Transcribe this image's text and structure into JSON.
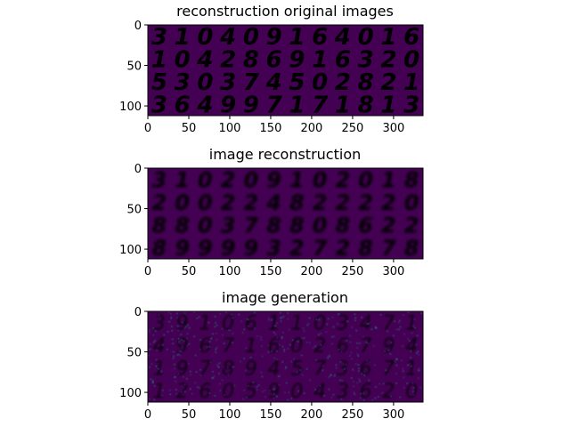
{
  "figure": {
    "panels": [
      {
        "title": "reconstruction original images",
        "rows": [
          [
            "3",
            "1",
            "0",
            "4",
            "0",
            "9",
            "1",
            "6",
            "4",
            "0",
            "1",
            "6"
          ],
          [
            "1",
            "0",
            "4",
            "2",
            "8",
            "6",
            "9",
            "1",
            "6",
            "3",
            "2",
            "0"
          ],
          [
            "5",
            "3",
            "0",
            "3",
            "7",
            "4",
            "5",
            "0",
            "2",
            "8",
            "2",
            "1"
          ],
          [
            "3",
            "6",
            "4",
            "9",
            "9",
            "7",
            "1",
            "7",
            "1",
            "8",
            "1",
            "3"
          ]
        ]
      },
      {
        "title": "image reconstruction",
        "rows": [
          [
            "3",
            "1",
            "0",
            "2",
            "0",
            "9",
            "1",
            "0",
            "2",
            "0",
            "1",
            "8"
          ],
          [
            "2",
            "0",
            "0",
            "2",
            "2",
            "4",
            "8",
            "2",
            "2",
            "2",
            "2",
            "0"
          ],
          [
            "8",
            "8",
            "0",
            "3",
            "7",
            "8",
            "8",
            "0",
            "8",
            "6",
            "2",
            "2"
          ],
          [
            "8",
            "9",
            "9",
            "9",
            "9",
            "3",
            "2",
            "7",
            "2",
            "8",
            "7",
            "8"
          ]
        ]
      },
      {
        "title": "image generation",
        "rows": [
          [
            "3",
            "9",
            "1",
            "0",
            "6",
            "1",
            "1",
            "0",
            "3",
            "4",
            "7",
            "1"
          ],
          [
            "4",
            "9",
            "6",
            "7",
            "1",
            "6",
            "0",
            "2",
            "6",
            "7",
            "9",
            "4"
          ],
          [
            "1",
            "9",
            "7",
            "8",
            "9",
            "4",
            "5",
            "7",
            "3",
            "6",
            "7",
            "1"
          ],
          [
            "1",
            "2",
            "6",
            "0",
            "5",
            "9",
            "0",
            "4",
            "3",
            "6",
            "2",
            "0"
          ]
        ]
      }
    ]
  },
  "chart_data": [
    {
      "type": "heatmap",
      "title": "reconstruction original images",
      "xlim": [
        0,
        336
      ],
      "ylim": [
        112,
        0
      ],
      "x_ticks": [
        0,
        50,
        100,
        150,
        200,
        250,
        300
      ],
      "y_ticks": [
        0,
        50,
        100
      ],
      "grid": false,
      "colormap": "viridis"
    },
    {
      "type": "heatmap",
      "title": "image reconstruction",
      "xlim": [
        0,
        336
      ],
      "ylim": [
        112,
        0
      ],
      "x_ticks": [
        0,
        50,
        100,
        150,
        200,
        250,
        300
      ],
      "y_ticks": [
        0,
        50,
        100
      ],
      "grid": false,
      "colormap": "viridis"
    },
    {
      "type": "heatmap",
      "title": "image generation",
      "xlim": [
        0,
        336
      ],
      "ylim": [
        112,
        0
      ],
      "x_ticks": [
        0,
        50,
        100,
        150,
        200,
        250,
        300
      ],
      "y_ticks": [
        0,
        50,
        100
      ],
      "grid": false,
      "colormap": "viridis"
    }
  ],
  "colors": {
    "background": "#440154",
    "original_digit": "#e6e419",
    "reconstruction_digit": "#2f9c8a",
    "generation_digit": "#3b6fa0"
  }
}
